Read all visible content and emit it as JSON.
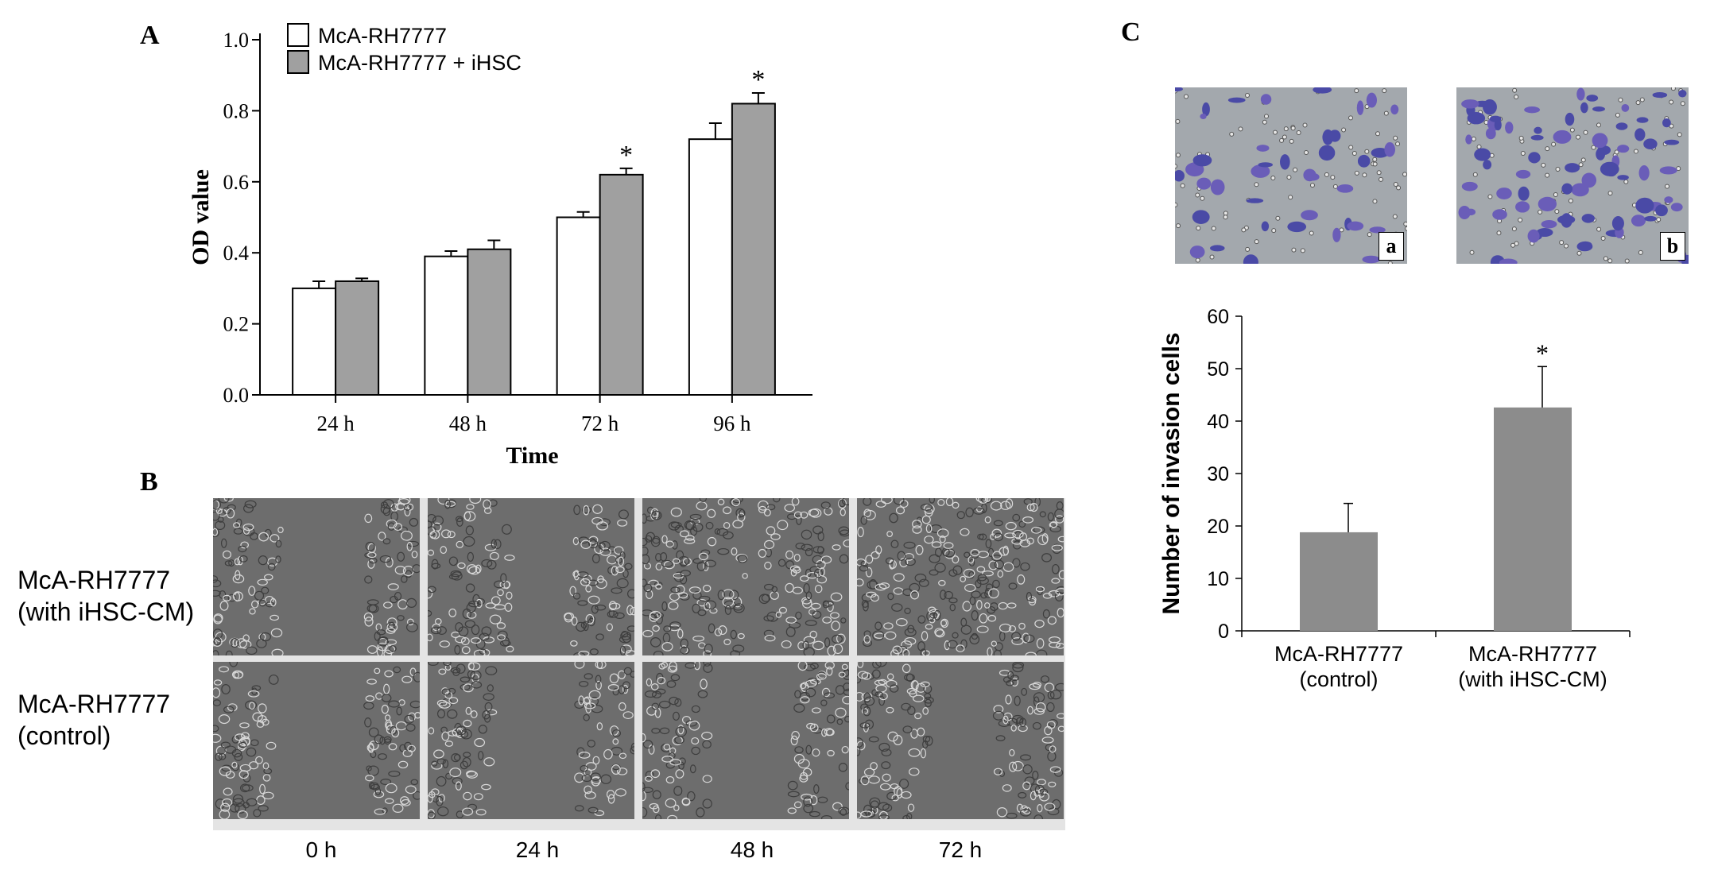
{
  "panels": {
    "a": "A",
    "b": "B",
    "c": "C"
  },
  "chart_data": [
    {
      "id": "panelA",
      "type": "bar",
      "title": "",
      "xlabel": "Time",
      "ylabel": "OD value",
      "categories": [
        "24 h",
        "48 h",
        "72 h",
        "96 h"
      ],
      "ylim": [
        0,
        1.0
      ],
      "yticks": [
        "0.0",
        "0.2",
        "0.4",
        "0.6",
        "0.8",
        "1.0"
      ],
      "legend_position": "top-left",
      "series": [
        {
          "name": "McA-RH7777",
          "values": [
            0.3,
            0.39,
            0.5,
            0.72
          ],
          "errors": [
            0.02,
            0.015,
            0.015,
            0.045
          ],
          "color": "#ffffff"
        },
        {
          "name": "McA-RH7777 + iHSC",
          "values": [
            0.32,
            0.41,
            0.62,
            0.82
          ],
          "errors": [
            0.008,
            0.025,
            0.018,
            0.03
          ],
          "color": "#a0a0a0"
        }
      ],
      "annotations": [
        {
          "category": "72 h",
          "series": "McA-RH7777 + iHSC",
          "text": "*"
        },
        {
          "category": "96 h",
          "series": "McA-RH7777 + iHSC",
          "text": "*"
        }
      ]
    },
    {
      "id": "panelC",
      "type": "bar",
      "title": "",
      "xlabel": "",
      "ylabel": "Number of invasion cells",
      "categories": [
        "McA-RH7777 (control)",
        "McA-RH7777 (with iHSC-CM)"
      ],
      "category_lines": [
        [
          "McA-RH7777",
          "(control)"
        ],
        [
          "McA-RH7777",
          "(with iHSC-CM)"
        ]
      ],
      "ylim": [
        0,
        60
      ],
      "yticks": [
        "0",
        "10",
        "20",
        "30",
        "40",
        "50",
        "60"
      ],
      "series": [
        {
          "values": [
            18.8,
            42.6
          ],
          "errors": [
            5.5,
            7.8
          ],
          "color": "#8c8c8c"
        }
      ],
      "annotations": [
        {
          "category": "McA-RH7777 (with iHSC-CM)",
          "text": "*"
        }
      ]
    }
  ],
  "panel_b": {
    "rows": [
      {
        "line1": "McA-RH7777",
        "line2": "(with iHSC-CM)"
      },
      {
        "line1": "McA-RH7777",
        "line2": "(control)"
      }
    ],
    "times": [
      "0 h",
      "24 h",
      "48 h",
      "72 h"
    ],
    "gap_fraction": [
      [
        0.42,
        0.28,
        0.08,
        0.0
      ],
      [
        0.45,
        0.42,
        0.4,
        0.32
      ]
    ]
  },
  "panel_c_images": {
    "labels": [
      "a",
      "b"
    ]
  }
}
